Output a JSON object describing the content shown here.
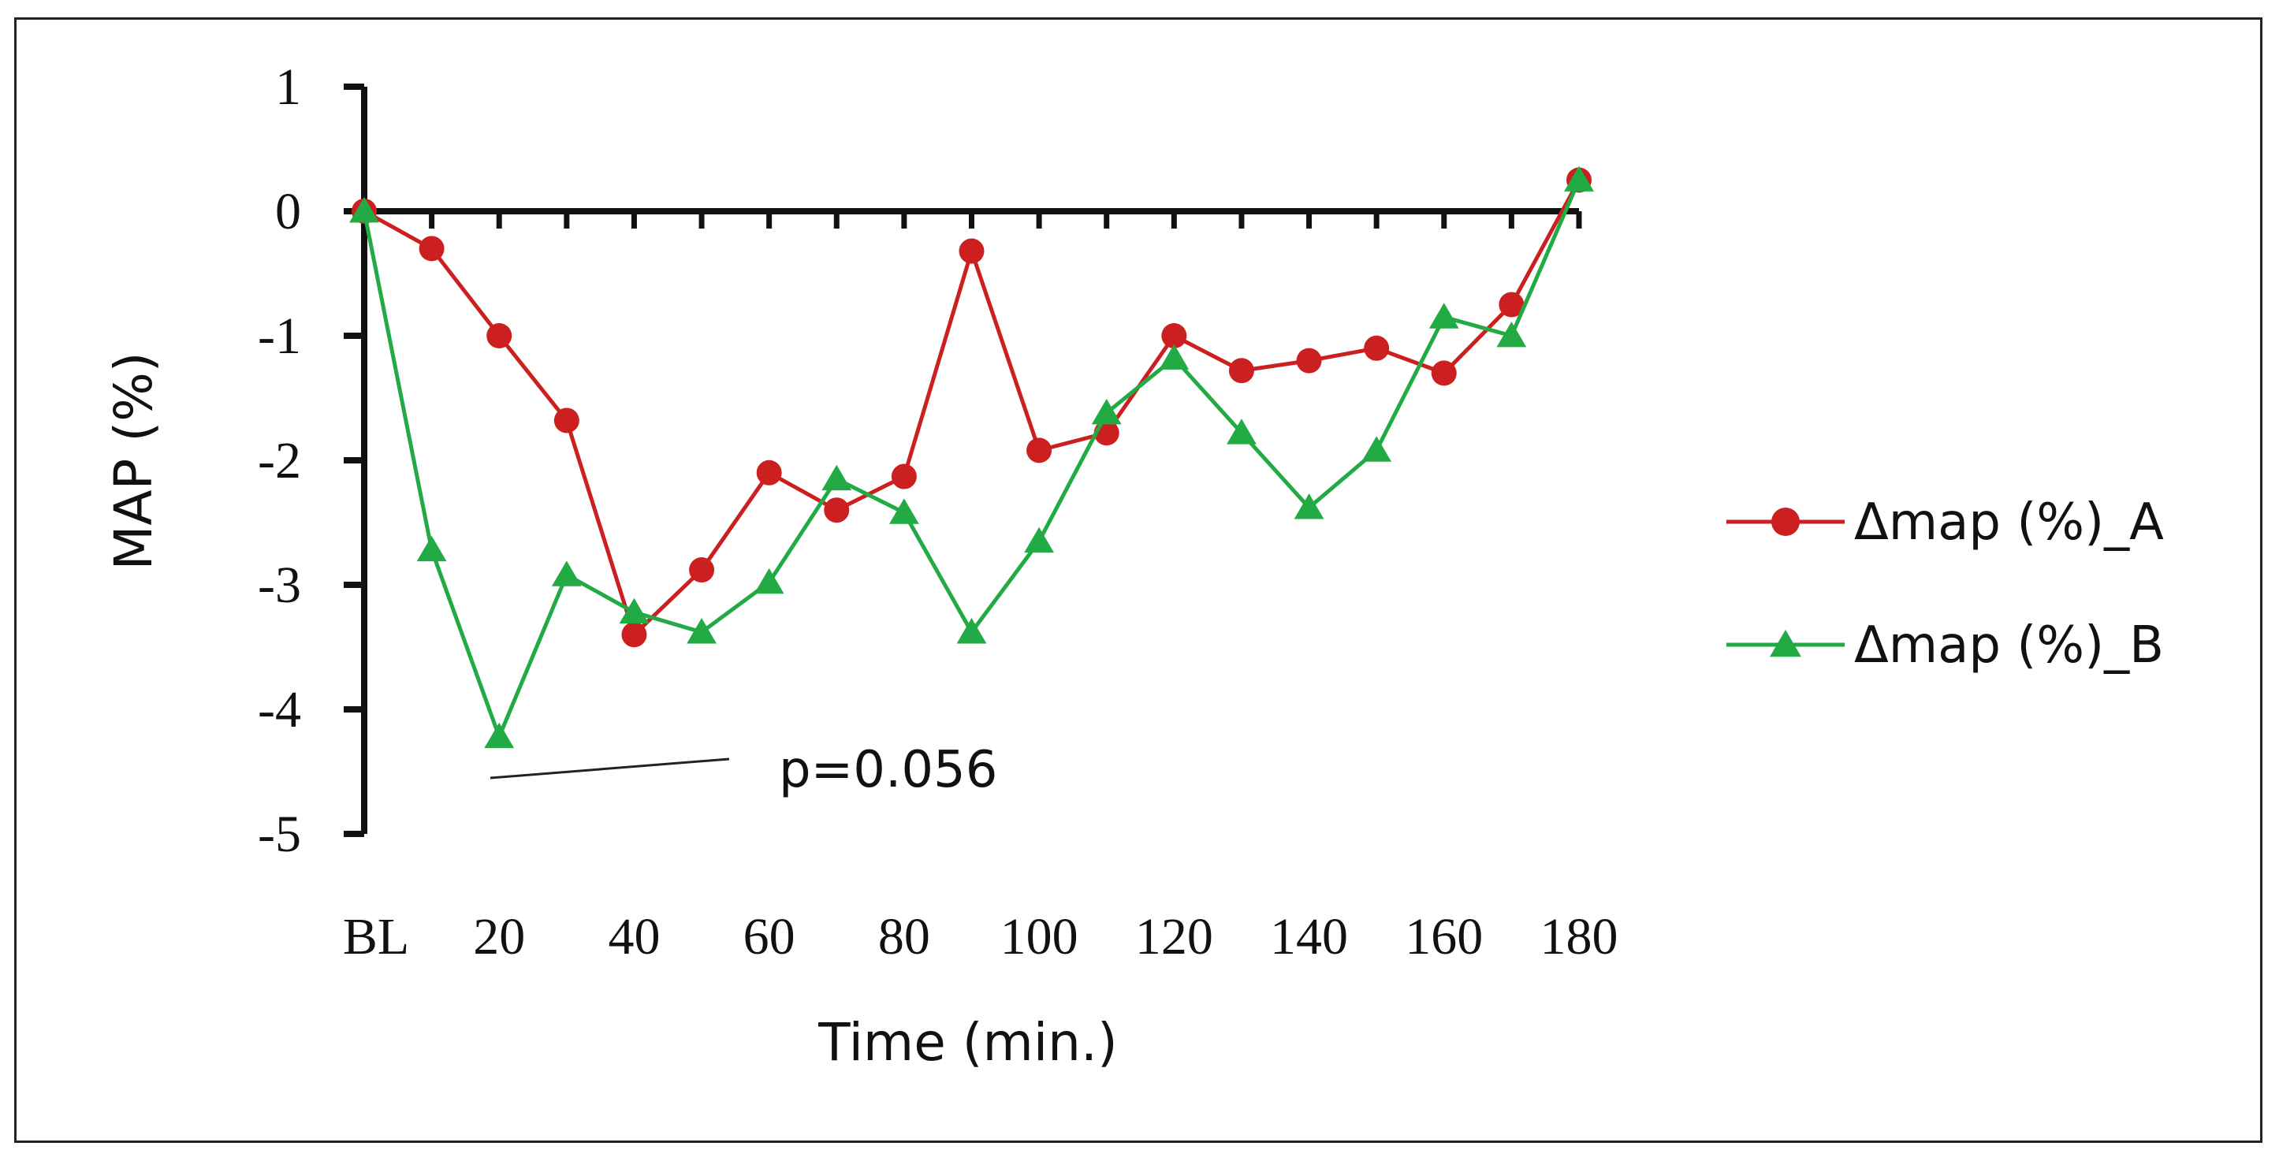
{
  "chart_data": {
    "type": "line",
    "title": "",
    "xlabel": "Time (min.)",
    "ylabel": "MAP (%)",
    "ylim": [
      -5,
      1
    ],
    "yticks": [
      1,
      0,
      -1,
      -2,
      -3,
      -4,
      -5
    ],
    "x": [
      0,
      10,
      20,
      30,
      40,
      50,
      60,
      70,
      80,
      90,
      100,
      110,
      120,
      130,
      140,
      150,
      160,
      170,
      180
    ],
    "xtick_labels": [
      "BL",
      "20",
      "40",
      "60",
      "80",
      "100",
      "120",
      "140",
      "160",
      "180"
    ],
    "xtick_values": [
      0,
      20,
      40,
      60,
      80,
      100,
      120,
      140,
      160,
      180
    ],
    "legend_position": "right",
    "series": [
      {
        "name": "Δmap (%)_A",
        "color": "#cc1f1f",
        "marker": "circle",
        "values": [
          0,
          -0.3,
          -1.0,
          -1.68,
          -3.4,
          -2.88,
          -2.1,
          -2.4,
          -2.13,
          -0.32,
          -1.92,
          -1.78,
          -1.0,
          -1.28,
          -1.2,
          -1.1,
          -1.3,
          -0.75,
          0.25
        ]
      },
      {
        "name": "Δmap (%)_B",
        "color": "#22aa44",
        "marker": "triangle",
        "values": [
          0,
          -2.72,
          -4.22,
          -2.92,
          -3.22,
          -3.38,
          -2.98,
          -2.15,
          -2.42,
          -3.38,
          -2.65,
          -1.62,
          -1.18,
          -1.78,
          -2.38,
          -1.92,
          -0.85,
          -1.0,
          0.25
        ]
      }
    ],
    "annotations": [
      {
        "text": "p=0.056"
      }
    ]
  }
}
